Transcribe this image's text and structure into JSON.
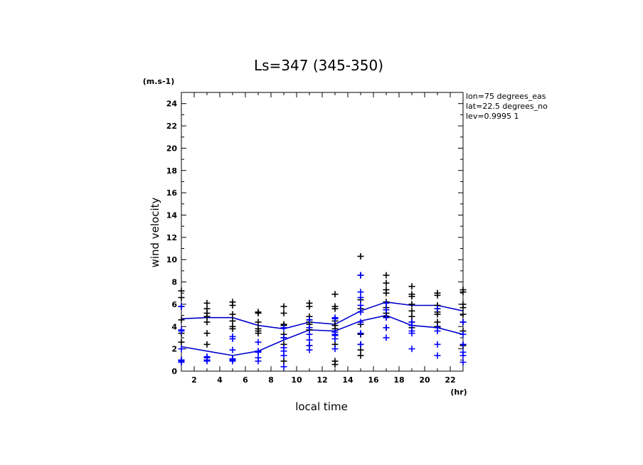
{
  "chart_data": {
    "type": "scatter",
    "title": "Ls=347 (345-350)",
    "xlabel": "local time",
    "ylabel": "wind velocity",
    "yunit": "(m.s-1)",
    "xunit": "(hr)",
    "xlim": [
      1,
      23
    ],
    "ylim": [
      0,
      25
    ],
    "xticks": [
      2,
      4,
      6,
      8,
      10,
      12,
      14,
      16,
      18,
      20,
      22
    ],
    "yticks": [
      0,
      2,
      4,
      6,
      8,
      10,
      12,
      14,
      16,
      18,
      20,
      22,
      24
    ],
    "info": [
      "lon=75 degrees_eas",
      "lat=22.5 degrees_no",
      "lev=0.9995 1"
    ],
    "colors": {
      "series_a": "#000000",
      "series_b": "#0000ff",
      "lines": "#0000cc"
    },
    "series": [
      {
        "color": "#000000",
        "points": [
          [
            1,
            7.2
          ],
          [
            1,
            6.6
          ],
          [
            1,
            5.8
          ],
          [
            1,
            4.6
          ],
          [
            1,
            3.4
          ],
          [
            1,
            2.6
          ],
          [
            1,
            1.0
          ],
          [
            3,
            6.1
          ],
          [
            3,
            5.6
          ],
          [
            3,
            5.2
          ],
          [
            3,
            4.9
          ],
          [
            3,
            4.4
          ],
          [
            3,
            3.4
          ],
          [
            3,
            2.4
          ],
          [
            3,
            1.2
          ],
          [
            5,
            6.2
          ],
          [
            5,
            5.9
          ],
          [
            5,
            5.1
          ],
          [
            5,
            4.5
          ],
          [
            5,
            4.0
          ],
          [
            5,
            3.8
          ],
          [
            5,
            1.1
          ],
          [
            7,
            5.3
          ],
          [
            7,
            5.2
          ],
          [
            7,
            4.4
          ],
          [
            7,
            3.8
          ],
          [
            7,
            3.6
          ],
          [
            7,
            3.4
          ],
          [
            9,
            5.8
          ],
          [
            9,
            5.2
          ],
          [
            9,
            4.2
          ],
          [
            9,
            4.1
          ],
          [
            9,
            3.3
          ],
          [
            9,
            3.0
          ],
          [
            9,
            2.4
          ],
          [
            9,
            0.9
          ],
          [
            11,
            6.1
          ],
          [
            11,
            5.8
          ],
          [
            11,
            4.9
          ],
          [
            11,
            4.6
          ],
          [
            11,
            4.4
          ],
          [
            11,
            4.2
          ],
          [
            11,
            3.7
          ],
          [
            11,
            2.3
          ],
          [
            13,
            6.9
          ],
          [
            13,
            5.8
          ],
          [
            13,
            5.6
          ],
          [
            13,
            4.5
          ],
          [
            13,
            4.1
          ],
          [
            13,
            3.8
          ],
          [
            13,
            2.4
          ],
          [
            13,
            0.9
          ],
          [
            13,
            0.6
          ],
          [
            15,
            10.3
          ],
          [
            15,
            8.6
          ],
          [
            15,
            6.4
          ],
          [
            15,
            5.6
          ],
          [
            15,
            4.2
          ],
          [
            15,
            3.3
          ],
          [
            15,
            2.4
          ],
          [
            15,
            1.9
          ],
          [
            15,
            1.4
          ],
          [
            17,
            8.6
          ],
          [
            17,
            7.9
          ],
          [
            17,
            7.3
          ],
          [
            17,
            7.0
          ],
          [
            17,
            6.2
          ],
          [
            17,
            5.7
          ],
          [
            17,
            5.2
          ],
          [
            17,
            4.9
          ],
          [
            17,
            3.9
          ],
          [
            19,
            7.6
          ],
          [
            19,
            6.9
          ],
          [
            19,
            6.7
          ],
          [
            19,
            6.0
          ],
          [
            19,
            5.4
          ],
          [
            19,
            4.9
          ],
          [
            19,
            4.4
          ],
          [
            19,
            3.9
          ],
          [
            21,
            7.0
          ],
          [
            21,
            6.8
          ],
          [
            21,
            5.9
          ],
          [
            21,
            5.6
          ],
          [
            21,
            5.3
          ],
          [
            21,
            5.1
          ],
          [
            21,
            4.4
          ],
          [
            21,
            4.0
          ],
          [
            23,
            7.3
          ],
          [
            23,
            7.1
          ],
          [
            23,
            6.0
          ],
          [
            23,
            5.7
          ],
          [
            23,
            5.1
          ],
          [
            23,
            4.4
          ],
          [
            23,
            3.6
          ],
          [
            23,
            2.3
          ]
        ]
      },
      {
        "color": "#0000ff",
        "points": [
          [
            1,
            5.8
          ],
          [
            1,
            3.7
          ],
          [
            1,
            3.6
          ],
          [
            1,
            2.0
          ],
          [
            1,
            1.0
          ],
          [
            1,
            0.9
          ],
          [
            1,
            0.8
          ],
          [
            3,
            1.3
          ],
          [
            3,
            1.2
          ],
          [
            3,
            1.0
          ],
          [
            3,
            0.9
          ],
          [
            5,
            3.1
          ],
          [
            5,
            2.9
          ],
          [
            5,
            1.9
          ],
          [
            5,
            1.1
          ],
          [
            5,
            1.0
          ],
          [
            5,
            0.9
          ],
          [
            7,
            2.6
          ],
          [
            7,
            1.8
          ],
          [
            7,
            1.7
          ],
          [
            7,
            1.2
          ],
          [
            7,
            0.9
          ],
          [
            9,
            3.9
          ],
          [
            9,
            3.0
          ],
          [
            9,
            2.1
          ],
          [
            9,
            1.8
          ],
          [
            9,
            1.4
          ],
          [
            9,
            0.4
          ],
          [
            11,
            4.6
          ],
          [
            11,
            3.9
          ],
          [
            11,
            3.3
          ],
          [
            11,
            2.8
          ],
          [
            11,
            2.3
          ],
          [
            11,
            1.9
          ],
          [
            13,
            4.8
          ],
          [
            13,
            4.7
          ],
          [
            13,
            3.5
          ],
          [
            13,
            3.3
          ],
          [
            13,
            3.2
          ],
          [
            13,
            2.9
          ],
          [
            13,
            2.0
          ],
          [
            15,
            8.6
          ],
          [
            15,
            7.1
          ],
          [
            15,
            6.6
          ],
          [
            15,
            5.9
          ],
          [
            15,
            5.3
          ],
          [
            15,
            4.4
          ],
          [
            15,
            3.4
          ],
          [
            15,
            2.4
          ],
          [
            17,
            6.1
          ],
          [
            17,
            5.5
          ],
          [
            17,
            4.8
          ],
          [
            17,
            3.9
          ],
          [
            17,
            3.0
          ],
          [
            19,
            4.4
          ],
          [
            19,
            4.1
          ],
          [
            19,
            3.6
          ],
          [
            19,
            3.4
          ],
          [
            19,
            2.0
          ],
          [
            21,
            5.6
          ],
          [
            21,
            3.9
          ],
          [
            21,
            3.6
          ],
          [
            21,
            2.4
          ],
          [
            21,
            1.4
          ],
          [
            23,
            4.4
          ],
          [
            23,
            3.3
          ],
          [
            23,
            2.4
          ],
          [
            23,
            1.7
          ],
          [
            23,
            1.4
          ],
          [
            23,
            0.8
          ]
        ]
      }
    ],
    "lines": [
      {
        "x": [
          1,
          3,
          5,
          7,
          9,
          11,
          13,
          15,
          17,
          19,
          21,
          23
        ],
        "y": [
          4.7,
          4.8,
          4.8,
          4.1,
          3.8,
          4.4,
          4.2,
          5.4,
          6.2,
          5.9,
          5.9,
          5.4
        ]
      },
      {
        "x": [
          1,
          3,
          5,
          7,
          9,
          11,
          13,
          15,
          17,
          19,
          21,
          23
        ],
        "y": [
          2.2,
          1.8,
          1.4,
          1.8,
          2.8,
          3.7,
          3.6,
          4.5,
          5.0,
          4.1,
          3.9,
          3.3
        ]
      }
    ]
  }
}
